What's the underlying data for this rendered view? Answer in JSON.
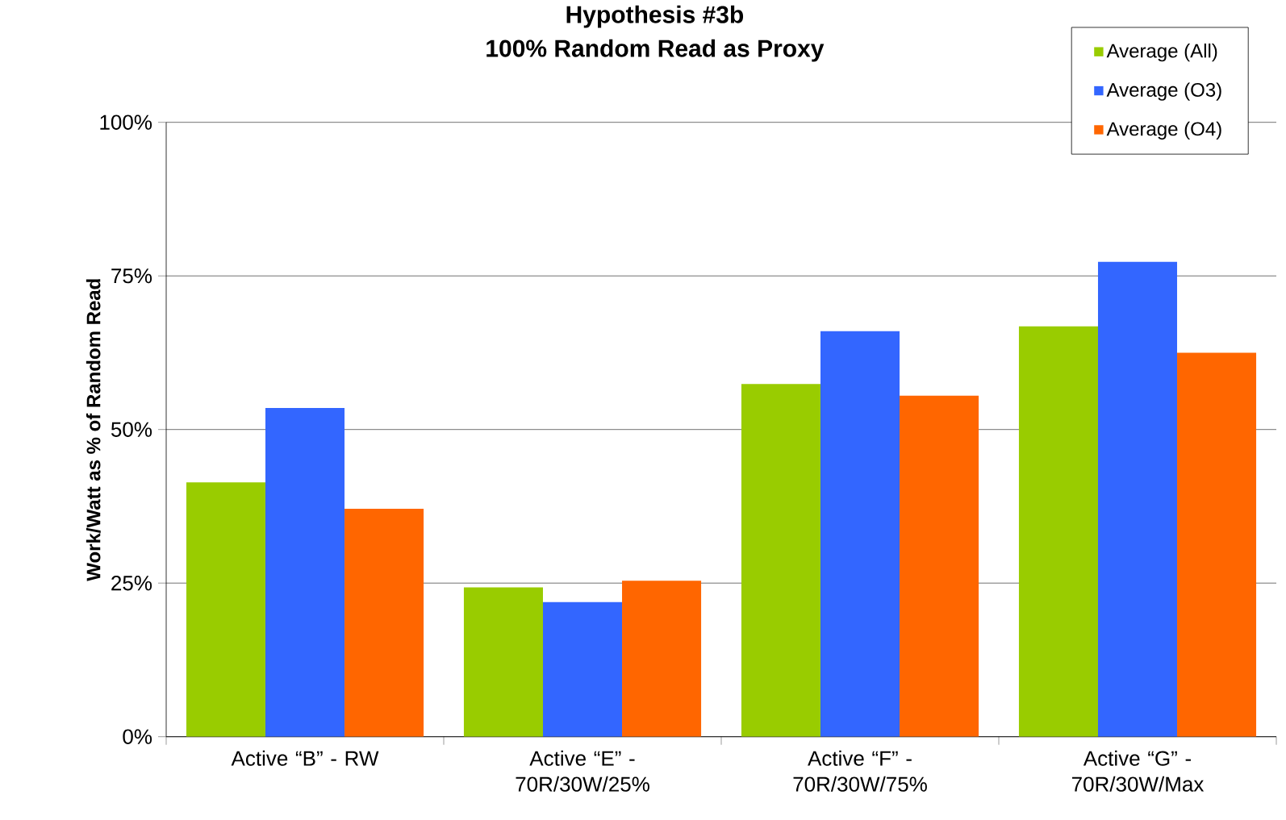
{
  "chart_data": {
    "type": "bar",
    "title": "Hypothesis #3b",
    "subtitle": "100% Random Read as Proxy",
    "ylabel": "Work/Watt as % of Random Read",
    "categories": [
      "Active “B” - RW",
      "Active “E” - 70R/30W/25%",
      "Active “F” - 70R/30W/75%",
      "Active “G” - 70R/30W/Max"
    ],
    "series": [
      {
        "name": "Average (All)",
        "color": "#99cc00",
        "values": [
          41.4,
          24.3,
          57.4,
          66.8
        ]
      },
      {
        "name": "Average (O3)",
        "color": "#3366ff",
        "values": [
          53.5,
          21.9,
          66.0,
          77.3
        ]
      },
      {
        "name": "Average (O4)",
        "color": "#ff6600",
        "values": [
          37.1,
          25.4,
          55.5,
          62.5
        ]
      }
    ],
    "ylim": [
      0,
      100
    ],
    "yticks": [
      {
        "value": 0,
        "label": "0%"
      },
      {
        "value": 25,
        "label": "25%"
      },
      {
        "value": 50,
        "label": "50%"
      },
      {
        "value": 75,
        "label": "75%"
      },
      {
        "value": 100,
        "label": "100%"
      }
    ],
    "grid": "y",
    "legend": "top right"
  }
}
